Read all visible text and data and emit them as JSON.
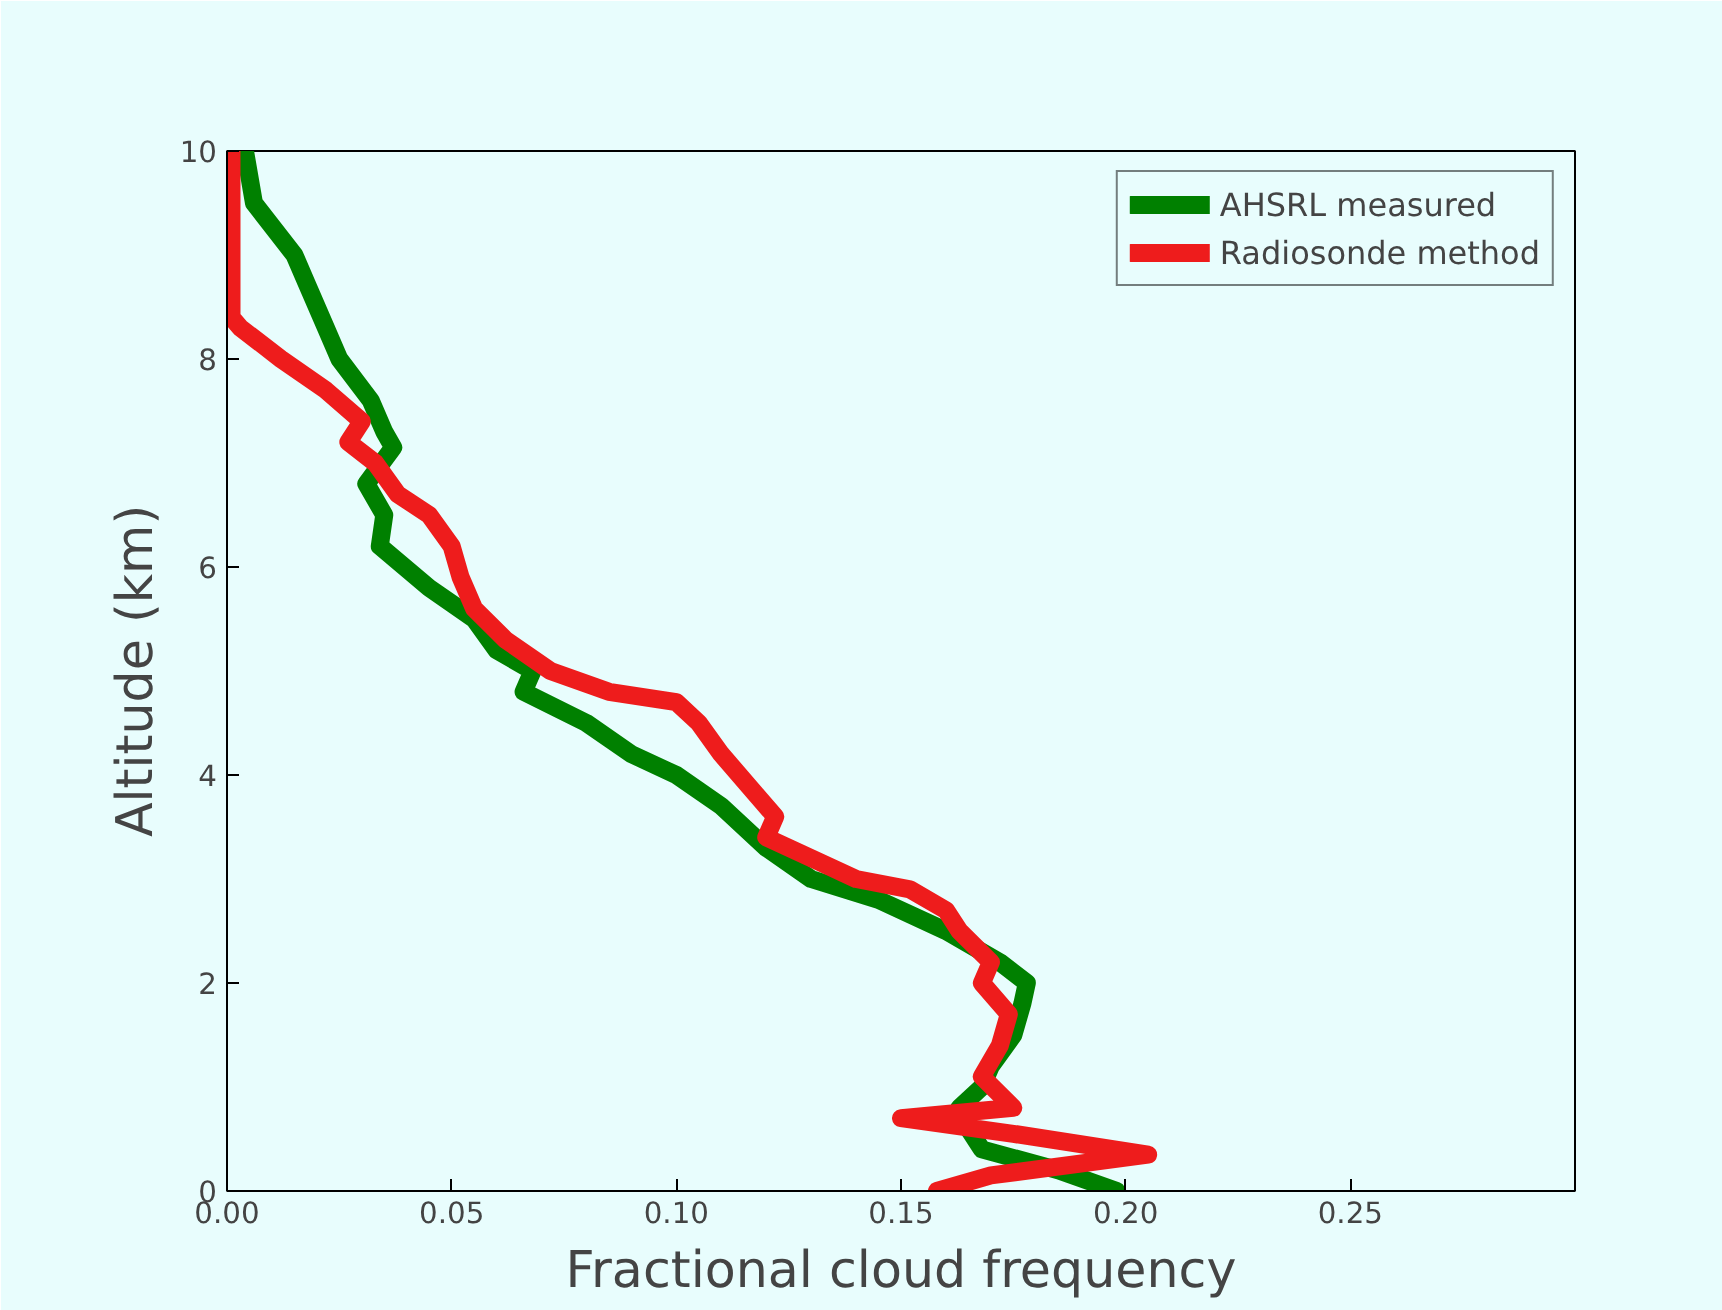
{
  "chart_data": {
    "type": "line",
    "xlabel": "Fractional cloud frequency",
    "ylabel": "Altitude (km)",
    "xlim": [
      0,
      0.3
    ],
    "ylim": [
      0,
      10
    ],
    "xticks": [
      {
        "value": 0,
        "label": "0.00"
      },
      {
        "value": 0.05,
        "label": "0.05"
      },
      {
        "value": 0.1,
        "label": "0.10"
      },
      {
        "value": 0.15,
        "label": "0.15"
      },
      {
        "value": 0.2,
        "label": "0.20"
      },
      {
        "value": 0.25,
        "label": "0.25"
      }
    ],
    "yticks": [
      0,
      2,
      4,
      6,
      8,
      10
    ],
    "grid": false,
    "legend": "top right",
    "marker": "none",
    "line_style": "solid",
    "series": [
      {
        "name": "AHSRL measured",
        "color": "#008000",
        "x": [
          0.004,
          0.006,
          0.015,
          0.018,
          0.022,
          0.025,
          0.032,
          0.035,
          0.037,
          0.031,
          0.035,
          0.034,
          0.045,
          0.055,
          0.06,
          0.068,
          0.066,
          0.08,
          0.09,
          0.1,
          0.11,
          0.12,
          0.13,
          0.145,
          0.16,
          0.172,
          0.178,
          0.177,
          0.175,
          0.17,
          0.168,
          0.163,
          0.165,
          0.168,
          0.185,
          0.198
        ],
        "values": [
          10,
          9.5,
          9.0,
          8.7,
          8.3,
          8.0,
          7.6,
          7.3,
          7.15,
          6.8,
          6.5,
          6.2,
          5.8,
          5.5,
          5.2,
          5.0,
          4.8,
          4.5,
          4.2,
          4.0,
          3.7,
          3.3,
          3.0,
          2.8,
          2.5,
          2.2,
          2.0,
          1.8,
          1.5,
          1.2,
          1.0,
          0.8,
          0.6,
          0.4,
          0.2,
          0.0
        ]
      },
      {
        "name": "Radiosonde method",
        "color": "#ee1c1c",
        "x": [
          0.001,
          0.001,
          0.003,
          0.012,
          0.022,
          0.03,
          0.027,
          0.033,
          0.038,
          0.045,
          0.05,
          0.052,
          0.055,
          0.062,
          0.072,
          0.085,
          0.1,
          0.105,
          0.11,
          0.118,
          0.122,
          0.12,
          0.13,
          0.14,
          0.152,
          0.16,
          0.163,
          0.17,
          0.168,
          0.174,
          0.172,
          0.168,
          0.175,
          0.15,
          0.175,
          0.205,
          0.17,
          0.158
        ],
        "values": [
          10,
          8.4,
          8.3,
          8.0,
          7.7,
          7.4,
          7.2,
          7.0,
          6.7,
          6.5,
          6.2,
          5.9,
          5.6,
          5.3,
          5.0,
          4.8,
          4.7,
          4.5,
          4.2,
          3.8,
          3.6,
          3.4,
          3.2,
          3.0,
          2.9,
          2.7,
          2.5,
          2.2,
          2.0,
          1.7,
          1.4,
          1.1,
          0.8,
          0.7,
          0.55,
          0.35,
          0.15,
          0.0
        ]
      }
    ]
  }
}
